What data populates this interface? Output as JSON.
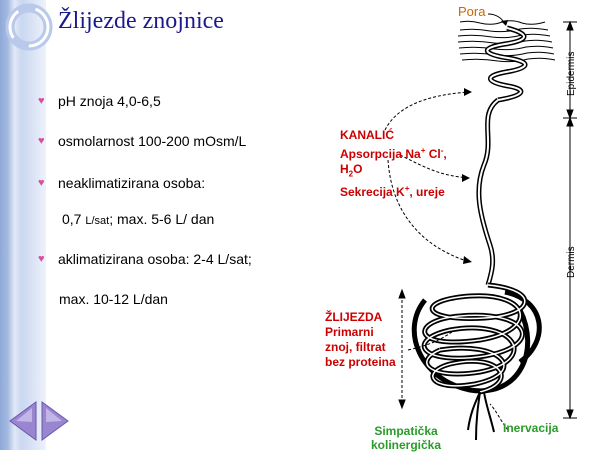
{
  "slide": {
    "title": "Žlijezde znojnice",
    "bullets": [
      "pH znoja 4,0-6,5",
      "osmolarnost 100-200 mOsm/L",
      "neaklimatizirana osoba:",
      "aklimatizirana osoba: 2-4 L/sat;"
    ],
    "cont1": {
      "a": "0,7 ",
      "b": "L/sat",
      "c": "; max. 5-6 L/ dan"
    },
    "cont2": "max. 10-12 L/dan"
  },
  "diagram": {
    "pora": "Pora",
    "epidermis": "Epidermis",
    "dermis": "Dermis",
    "kanalic": "KANALIĆ",
    "apsorpcija_a": "Apsorpcija Na",
    "apsorpcija_b": " Cl",
    "apsorpcija_c": ",",
    "h2o_a": "H",
    "h2o_b": "2",
    "h2o_c": "O",
    "sekrecija_a": "Sekrecija K",
    "sekrecija_b": ", ureje",
    "zlijezda": "ŽLIJEZDA",
    "primarni": "Primarni",
    "znoj": "znoj, filtrat",
    "bez": "bez proteina",
    "simpaticka": "Simpatička",
    "kolinergicka": "kolinergička",
    "inervacija": "Inervacija",
    "plus": "+",
    "minus": "-"
  },
  "colors": {
    "title": "#1a1a8c",
    "bullet_marker": "#d5519e",
    "label_red": "#cc0000",
    "label_green": "#2a9b2a",
    "nav_arrow": "#9a86d0"
  },
  "icons": {
    "bullet": "heart-icon",
    "logo": "ring-logo-icon",
    "nav_back": "triangle-left-icon",
    "nav_forward": "triangle-right-icon"
  }
}
